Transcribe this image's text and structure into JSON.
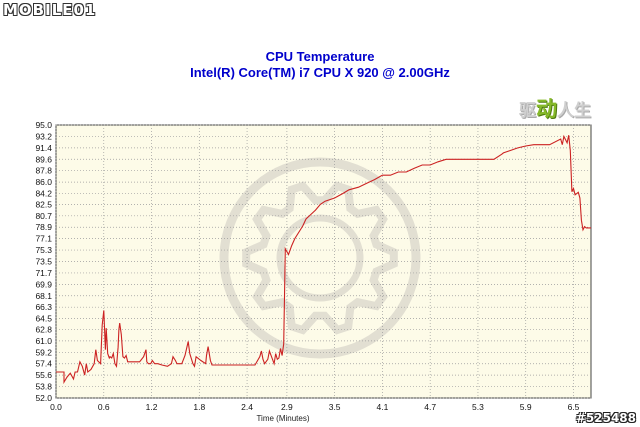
{
  "watermarks": {
    "logo": "MOBILE01",
    "badge": [
      "驱",
      "动",
      "人生"
    ],
    "code": "#525488"
  },
  "colors": {
    "title": "#0000cc",
    "plot_bg": "#fdfbe8",
    "grid": "#9a9a9a",
    "line": "#cc2222"
  },
  "chart_data": {
    "type": "line",
    "title": "CPU Temperature",
    "subtitle": "Intel(R) Core(TM) i7 CPU X 920 @ 2.00GHz",
    "xlabel": "Time (Minutes)",
    "ylabel": "",
    "xlim": [
      0,
      6.72
    ],
    "ylim": [
      52.0,
      95.0
    ],
    "grid": true,
    "x_ticks": [
      "0.0",
      "0.6",
      "1.2",
      "1.8",
      "2.4",
      "2.9",
      "3.5",
      "4.1",
      "4.7",
      "5.3",
      "5.9",
      "6.5"
    ],
    "y_ticks": [
      "95.0",
      "93.2",
      "91.4",
      "89.6",
      "87.8",
      "86.0",
      "84.2",
      "82.5",
      "80.7",
      "78.9",
      "77.1",
      "75.3",
      "73.5",
      "71.7",
      "69.9",
      "68.1",
      "66.3",
      "64.5",
      "62.8",
      "61.0",
      "59.2",
      "57.4",
      "55.6",
      "53.8",
      "52.0"
    ],
    "series": [
      {
        "name": "CPU Temperature",
        "x": [
          0.0,
          0.1,
          0.1,
          0.14,
          0.18,
          0.22,
          0.24,
          0.27,
          0.3,
          0.33,
          0.36,
          0.38,
          0.4,
          0.44,
          0.48,
          0.5,
          0.52,
          0.56,
          0.58,
          0.6,
          0.62,
          0.63,
          0.65,
          0.67,
          0.68,
          0.7,
          0.72,
          0.74,
          0.76,
          0.78,
          0.79,
          0.8,
          0.82,
          0.84,
          0.86,
          0.88,
          0.9,
          0.95,
          1.05,
          1.1,
          1.13,
          1.14,
          1.16,
          1.19,
          1.21,
          1.24,
          1.26,
          1.28,
          1.33,
          1.4,
          1.45,
          1.47,
          1.5,
          1.52,
          1.58,
          1.62,
          1.64,
          1.66,
          1.68,
          1.72,
          1.74,
          1.76,
          1.82,
          1.88,
          1.89,
          1.91,
          1.94,
          1.96,
          2.0,
          2.1,
          2.3,
          2.5,
          2.56,
          2.58,
          2.6,
          2.62,
          2.66,
          2.68,
          2.72,
          2.74,
          2.76,
          2.78,
          2.8,
          2.82,
          2.84,
          2.86,
          2.88,
          2.92,
          2.96,
          3.0,
          3.06,
          3.1,
          3.14,
          3.2,
          3.26,
          3.32,
          3.38,
          3.5,
          3.6,
          3.68,
          3.8,
          3.9,
          4.0,
          4.1,
          4.2,
          4.3,
          4.4,
          4.5,
          4.6,
          4.7,
          4.8,
          4.9,
          5.0,
          5.1,
          5.3,
          5.5,
          5.6,
          5.62,
          5.8,
          5.9,
          6.0,
          6.2,
          6.34,
          6.36,
          6.38,
          6.42,
          6.44,
          6.46,
          6.48,
          6.5,
          6.52,
          6.56,
          6.58,
          6.6,
          6.62,
          6.64,
          6.66,
          6.72
        ],
        "values": [
          56.1,
          56.1,
          54.5,
          55.3,
          55.9,
          55.0,
          56.1,
          56.1,
          57.7,
          57.0,
          55.6,
          57.4,
          56.1,
          56.5,
          57.4,
          59.6,
          57.9,
          57.4,
          63.5,
          65.8,
          59.6,
          63.0,
          59.0,
          58.3,
          58.5,
          58.3,
          59.0,
          57.4,
          57.0,
          60.0,
          62.8,
          63.8,
          62.0,
          58.5,
          58.3,
          58.7,
          57.7,
          57.7,
          57.7,
          58.5,
          59.6,
          57.7,
          57.4,
          57.4,
          57.9,
          57.4,
          57.4,
          57.4,
          57.2,
          57.0,
          57.4,
          58.5,
          57.9,
          57.4,
          57.4,
          58.7,
          59.8,
          60.9,
          59.0,
          57.4,
          57.0,
          58.5,
          57.9,
          57.4,
          58.7,
          60.1,
          57.9,
          57.2,
          57.2,
          57.2,
          57.2,
          57.2,
          58.5,
          59.4,
          58.1,
          57.4,
          58.1,
          59.4,
          58.1,
          57.4,
          59.0,
          58.1,
          58.3,
          59.8,
          58.7,
          60.5,
          75.5,
          74.6,
          76.0,
          77.1,
          78.3,
          79.1,
          80.2,
          80.9,
          81.6,
          82.5,
          83.0,
          83.5,
          84.2,
          84.8,
          85.2,
          85.8,
          86.4,
          87.1,
          87.1,
          87.6,
          87.6,
          88.2,
          88.7,
          88.7,
          89.2,
          89.6,
          89.6,
          89.6,
          89.6,
          89.6,
          90.4,
          90.6,
          91.4,
          91.7,
          91.9,
          91.9,
          92.8,
          91.9,
          93.2,
          92.2,
          93.4,
          91.0,
          84.5,
          85.0,
          84.0,
          84.4,
          83.5,
          80.0,
          78.5,
          79.0,
          78.8,
          78.8
        ]
      }
    ]
  }
}
